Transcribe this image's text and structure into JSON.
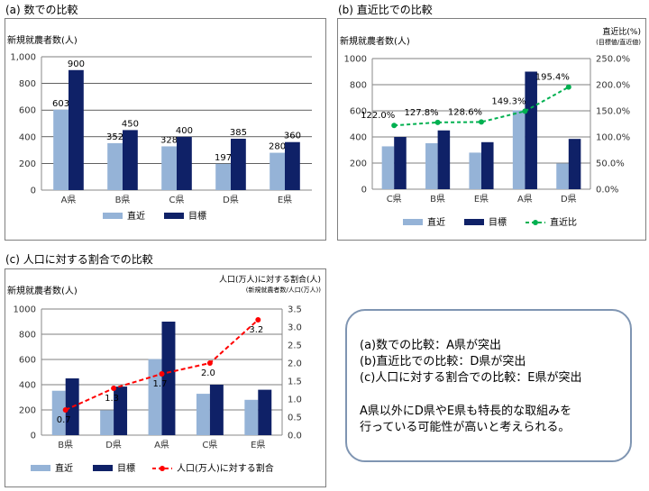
{
  "colors": {
    "recent": "#95b3d7",
    "target": "#0f2167",
    "line_green": "#00b050",
    "line_red": "#ff0000",
    "grid": "#000000"
  },
  "panel_a": {
    "title": "(a)  数での比較"
  },
  "panel_b": {
    "title": "(b)  直近比での比較"
  },
  "panel_c": {
    "title": "(c)  人口に対する割合での比較"
  },
  "conclusion": {
    "lines": [
      "(a)数での比較：A県が突出",
      "(b)直近比での比較：D県が突出",
      "(c)人口に対する割合での比較：E県が突出"
    ],
    "remark": [
      "A県以外にD県やE県も特長的な取組みを",
      "行っている可能性が高いと考えられる。"
    ]
  },
  "chart_data": [
    {
      "type": "bar",
      "title": "(a)  数での比較",
      "ylabel": "新規就農者数(人)",
      "ylim": [
        0,
        1000
      ],
      "yticks": [
        0,
        200,
        400,
        600,
        800,
        1000
      ],
      "ytick_labels": [
        "0",
        "200",
        "400",
        "600",
        "800",
        "1,000"
      ],
      "categories": [
        "A県",
        "B県",
        "C県",
        "D県",
        "E県"
      ],
      "series": [
        {
          "name": "直近",
          "values": [
            603,
            352,
            328,
            197,
            280
          ]
        },
        {
          "name": "目標",
          "values": [
            900,
            450,
            400,
            385,
            360
          ]
        }
      ],
      "data_labels": {
        "直近": [
          "603",
          "352",
          "328",
          "197",
          "280"
        ],
        "目標": [
          "900",
          "450",
          "400",
          "385",
          "360"
        ]
      },
      "legend": "bottom",
      "grid": true
    },
    {
      "type": "bar",
      "title": "(b)  直近比での比較",
      "ylabel": "新規就農者数(人)",
      "y2label": "直近比(%)",
      "y2sublabel": "(目標値/直近値)",
      "ylim": [
        0,
        1000
      ],
      "yticks": [
        0,
        200,
        400,
        600,
        800,
        1000
      ],
      "ytick_labels": [
        "0",
        "200",
        "400",
        "600",
        "800",
        "1000"
      ],
      "y2lim": [
        0,
        250
      ],
      "y2ticks": [
        0,
        50,
        100,
        150,
        200,
        250
      ],
      "y2tick_labels": [
        "0.0%",
        "50.0%",
        "100.0%",
        "150.0%",
        "200.0%",
        "250.0%"
      ],
      "categories": [
        "C県",
        "B県",
        "E県",
        "A県",
        "D県"
      ],
      "series": [
        {
          "name": "直近",
          "values": [
            328,
            352,
            280,
            603,
            197
          ]
        },
        {
          "name": "目標",
          "values": [
            400,
            450,
            360,
            900,
            385
          ]
        },
        {
          "name": "直近比",
          "type": "line",
          "axis": "y2",
          "values": [
            122.0,
            127.8,
            128.6,
            149.3,
            195.4
          ]
        }
      ],
      "data_labels": {
        "直近比": [
          "122.0%",
          "127.8%",
          "128.6%",
          "149.3%",
          "195.4%"
        ]
      },
      "legend": "bottom",
      "grid": true
    },
    {
      "type": "bar",
      "title": "(c)  人口に対する割合での比較",
      "ylabel": "新規就農者数(人)",
      "y2label": "人口(万人)に対する割合(人)",
      "y2sublabel": "(新規就農者数/人口(万人))",
      "ylim": [
        0,
        1000
      ],
      "yticks": [
        0,
        200,
        400,
        600,
        800,
        1000
      ],
      "ytick_labels": [
        "0",
        "200",
        "400",
        "600",
        "800",
        "1000"
      ],
      "y2lim": [
        0,
        3.5
      ],
      "y2ticks": [
        0,
        0.5,
        1.0,
        1.5,
        2.0,
        2.5,
        3.0,
        3.5
      ],
      "y2tick_labels": [
        "0.0",
        "0.5",
        "1.0",
        "1.5",
        "2.0",
        "2.5",
        "3.0",
        "3.5"
      ],
      "categories": [
        "B県",
        "D県",
        "A県",
        "C県",
        "E県"
      ],
      "series": [
        {
          "name": "直近",
          "values": [
            352,
            197,
            603,
            328,
            280
          ]
        },
        {
          "name": "目標",
          "values": [
            450,
            385,
            900,
            400,
            360
          ]
        },
        {
          "name": "人口(万人)に対する割合",
          "type": "line",
          "axis": "y2",
          "values": [
            0.7,
            1.3,
            1.7,
            2.0,
            3.2
          ]
        }
      ],
      "data_labels": {
        "人口(万人)に対する割合": [
          "0.7",
          "1.3",
          "1.7",
          "2.0",
          "3.2"
        ]
      },
      "legend": "bottom",
      "grid": true
    }
  ]
}
